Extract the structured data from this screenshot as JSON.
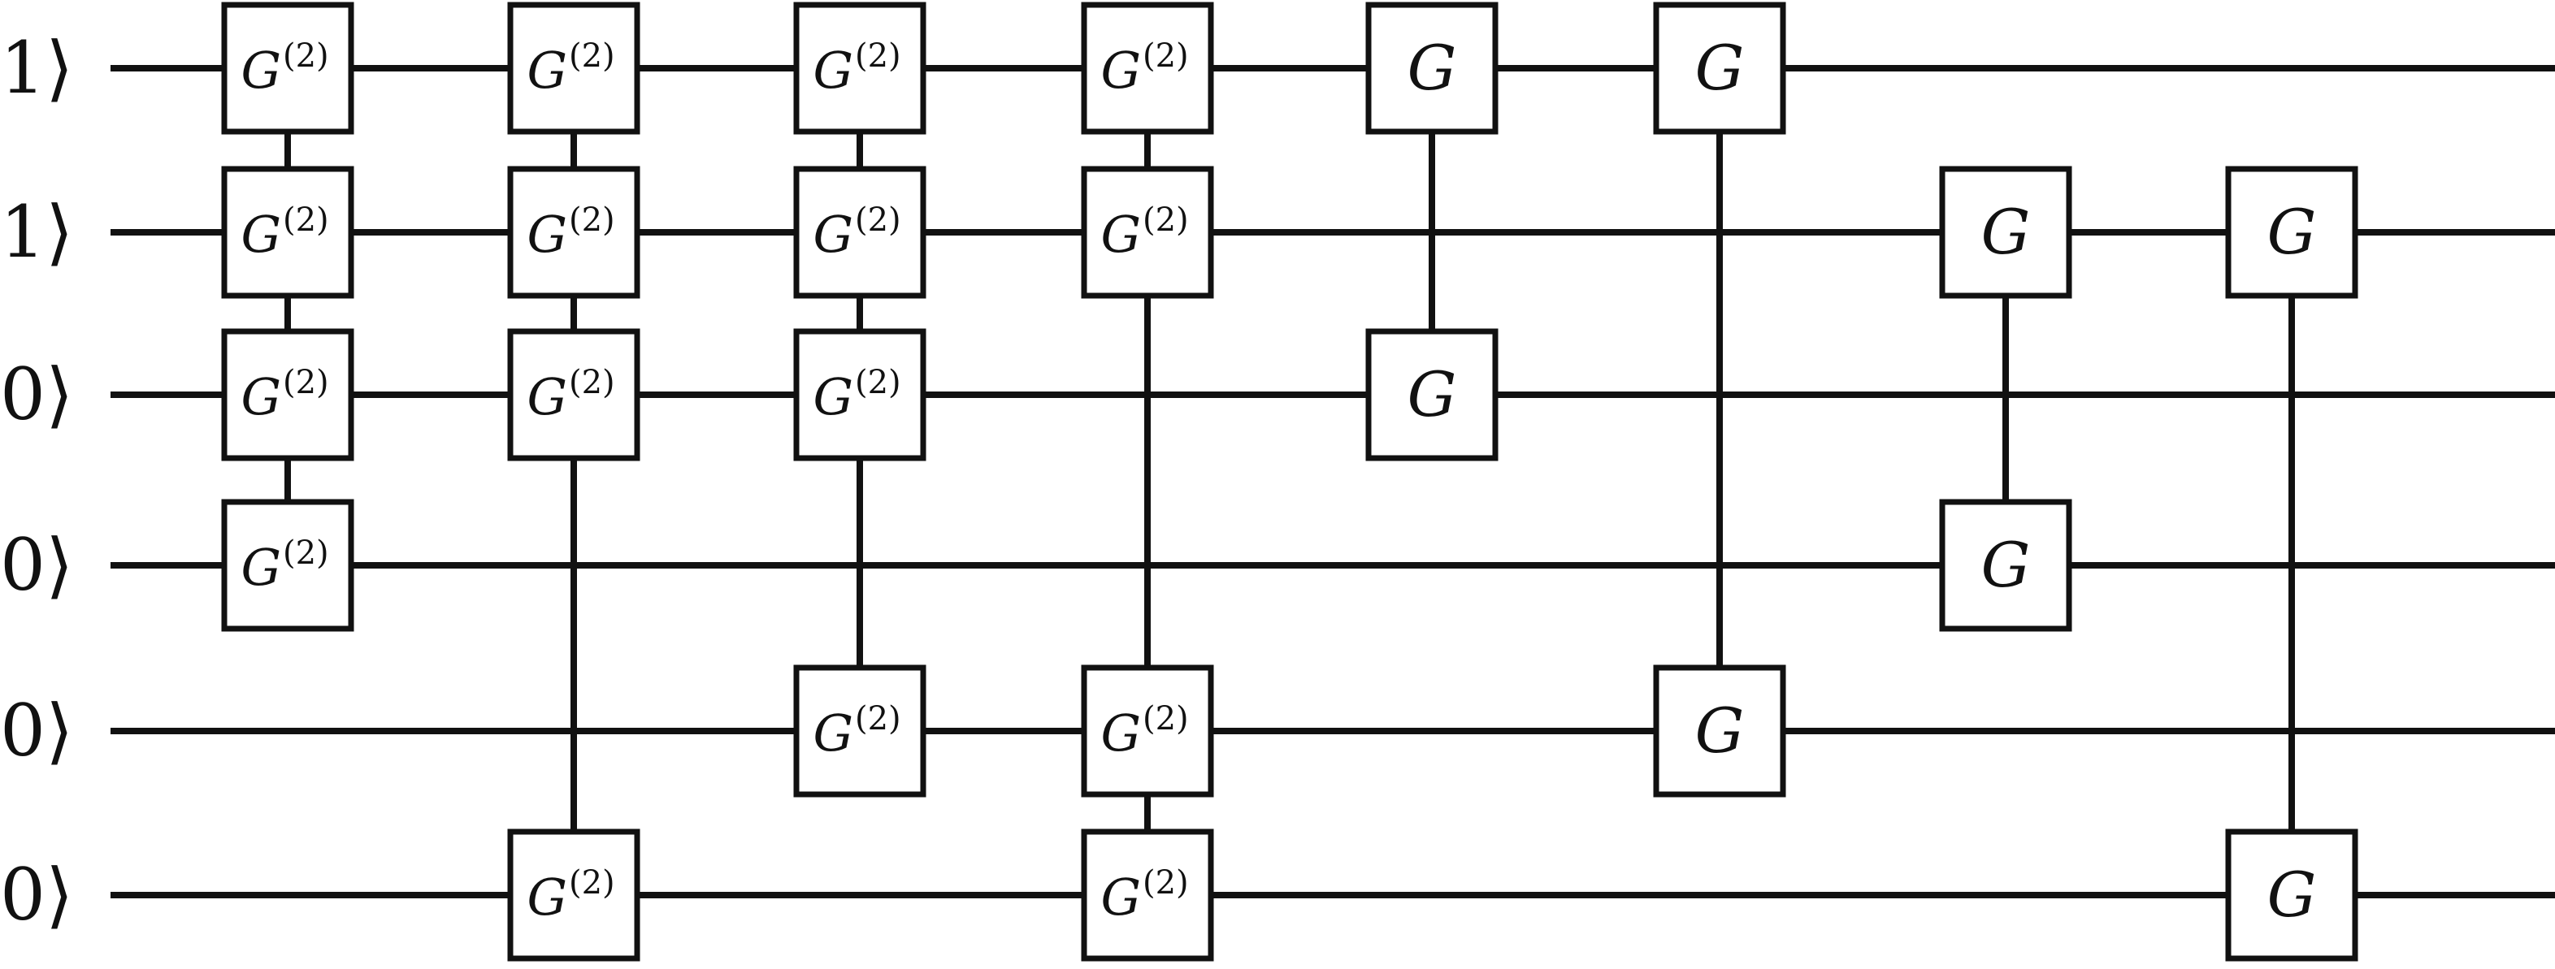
{
  "diagram": {
    "type": "quantum-circuit",
    "inputs": [
      "1⟩",
      "1⟩",
      "0⟩",
      "0⟩",
      "0⟩",
      "0⟩"
    ],
    "gate_symbol": "G",
    "gate_superscript": "(2)",
    "columns": [
      {
        "gates": [
          {
            "row": 0,
            "label": "G",
            "sup": "(2)"
          },
          {
            "row": 1,
            "label": "G",
            "sup": "(2)"
          },
          {
            "row": 2,
            "label": "G",
            "sup": "(2)"
          },
          {
            "row": 3,
            "label": "G",
            "sup": "(2)"
          }
        ]
      },
      {
        "gates": [
          {
            "row": 0,
            "label": "G",
            "sup": "(2)"
          },
          {
            "row": 1,
            "label": "G",
            "sup": "(2)"
          },
          {
            "row": 2,
            "label": "G",
            "sup": "(2)"
          },
          {
            "row": 5,
            "label": "G",
            "sup": "(2)"
          }
        ]
      },
      {
        "gates": [
          {
            "row": 0,
            "label": "G",
            "sup": "(2)"
          },
          {
            "row": 1,
            "label": "G",
            "sup": "(2)"
          },
          {
            "row": 2,
            "label": "G",
            "sup": "(2)"
          },
          {
            "row": 4,
            "label": "G",
            "sup": "(2)"
          }
        ]
      },
      {
        "gates": [
          {
            "row": 0,
            "label": "G",
            "sup": "(2)"
          },
          {
            "row": 1,
            "label": "G",
            "sup": "(2)"
          },
          {
            "row": 4,
            "label": "G",
            "sup": "(2)"
          },
          {
            "row": 5,
            "label": "G",
            "sup": "(2)"
          }
        ]
      },
      {
        "gates": [
          {
            "row": 0,
            "label": "G",
            "sup": ""
          },
          {
            "row": 2,
            "label": "G",
            "sup": ""
          }
        ]
      },
      {
        "gates": [
          {
            "row": 0,
            "label": "G",
            "sup": ""
          },
          {
            "row": 4,
            "label": "G",
            "sup": ""
          }
        ]
      },
      {
        "gates": [
          {
            "row": 1,
            "label": "G",
            "sup": ""
          },
          {
            "row": 3,
            "label": "G",
            "sup": ""
          }
        ]
      },
      {
        "gates": [
          {
            "row": 1,
            "label": "G",
            "sup": ""
          },
          {
            "row": 5,
            "label": "G",
            "sup": ""
          }
        ]
      }
    ]
  }
}
